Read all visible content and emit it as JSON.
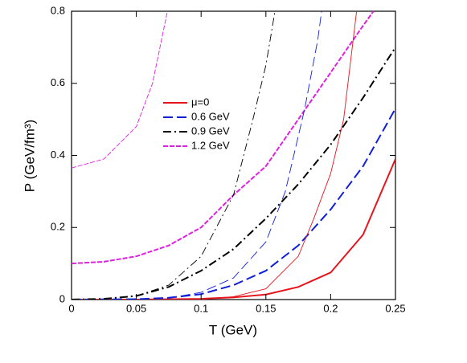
{
  "chart_data": {
    "type": "line",
    "xlabel": "T (GeV)",
    "ylabel": "P (GeV/fm³)",
    "xlim": [
      0,
      0.25
    ],
    "ylim": [
      0,
      0.8
    ],
    "xticks": [
      0,
      0.05,
      0.1,
      0.15,
      0.2,
      0.25
    ],
    "yticks": [
      0,
      0.2,
      0.4,
      0.6,
      0.8
    ],
    "grid": false,
    "series": [
      {
        "name": "μ=0",
        "color": "#e8141c",
        "style": "solid",
        "weight": "thick",
        "x": [
          0,
          0.05,
          0.1,
          0.125,
          0.15,
          0.175,
          0.2,
          0.225,
          0.25
        ],
        "values": [
          0,
          0,
          0.002,
          0.006,
          0.014,
          0.035,
          0.075,
          0.18,
          0.39
        ]
      },
      {
        "name": "0.6 GeV",
        "color": "#1020d8",
        "style": "dashed",
        "weight": "thick",
        "x": [
          0,
          0.05,
          0.075,
          0.1,
          0.125,
          0.15,
          0.175,
          0.2,
          0.225,
          0.25
        ],
        "values": [
          0,
          0.001,
          0.005,
          0.015,
          0.04,
          0.08,
          0.15,
          0.25,
          0.37,
          0.53
        ]
      },
      {
        "name": "0.9 GeV",
        "color": "#000000",
        "style": "dashdot",
        "weight": "thick",
        "x": [
          0,
          0.025,
          0.05,
          0.075,
          0.1,
          0.125,
          0.15,
          0.175,
          0.2,
          0.225,
          0.25
        ],
        "values": [
          0,
          0.002,
          0.01,
          0.035,
          0.08,
          0.14,
          0.225,
          0.32,
          0.43,
          0.56,
          0.7
        ]
      },
      {
        "name": "1.2 GeV",
        "color": "#e020e0",
        "style": "shortdash",
        "weight": "thick",
        "x": [
          0,
          0.025,
          0.05,
          0.075,
          0.1,
          0.125,
          0.15,
          0.175,
          0.2,
          0.225,
          0.233
        ],
        "values": [
          0.1,
          0.105,
          0.12,
          0.15,
          0.2,
          0.29,
          0.37,
          0.5,
          0.63,
          0.76,
          0.8
        ]
      },
      {
        "color": "#e8141c",
        "style": "solid",
        "weight": "thin",
        "x": [
          0,
          0.075,
          0.1,
          0.125,
          0.15,
          0.175,
          0.187,
          0.2,
          0.21,
          0.22
        ],
        "values": [
          0,
          0,
          0.001,
          0.008,
          0.03,
          0.12,
          0.225,
          0.35,
          0.5,
          0.8
        ]
      },
      {
        "color": "#1020d8",
        "style": "dashed",
        "weight": "thin",
        "x": [
          0,
          0.05,
          0.075,
          0.1,
          0.125,
          0.15,
          0.165,
          0.18,
          0.19,
          0.193
        ],
        "values": [
          0,
          0,
          0.004,
          0.02,
          0.06,
          0.16,
          0.3,
          0.53,
          0.72,
          0.8
        ]
      },
      {
        "color": "#000000",
        "style": "dashdot",
        "weight": "thin",
        "x": [
          0,
          0.025,
          0.05,
          0.075,
          0.1,
          0.125,
          0.14,
          0.15,
          0.157
        ],
        "values": [
          0,
          0.001,
          0.01,
          0.04,
          0.12,
          0.29,
          0.5,
          0.65,
          0.8
        ]
      },
      {
        "color": "#e020e0",
        "style": "shortdash",
        "weight": "thin",
        "x": [
          0,
          0.025,
          0.05,
          0.0625,
          0.074
        ],
        "values": [
          0.365,
          0.39,
          0.48,
          0.6,
          0.8
        ]
      }
    ]
  }
}
